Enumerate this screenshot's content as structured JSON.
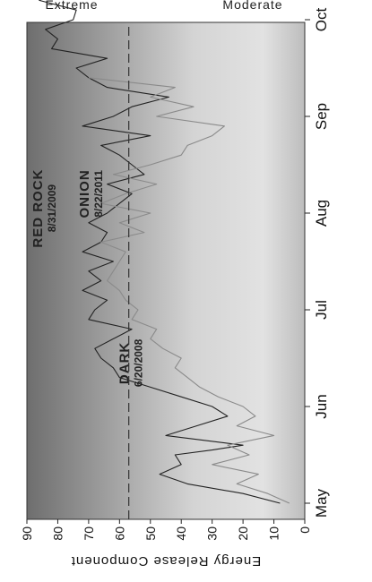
{
  "chart_data": {
    "type": "line",
    "ylabel": "Energy Release Component",
    "ylim": [
      0,
      90
    ],
    "yticks": [
      0,
      10,
      20,
      30,
      40,
      50,
      60,
      70,
      80,
      90
    ],
    "x_categories": [
      "May",
      "Jun",
      "Jul",
      "Aug",
      "Sep",
      "Oct"
    ],
    "bands": {
      "top": "Extreme",
      "bottom": "Moderate"
    },
    "reference_line": 57,
    "annotations": [
      {
        "text": "DARK",
        "sub": "6/20/2008",
        "x": 1.45,
        "y": 57
      },
      {
        "text": "RED ROCK",
        "sub": "8/31/2009",
        "x": 3.05,
        "y": 85
      },
      {
        "text": "ONION",
        "sub": "8/22/2011",
        "x": 3.2,
        "y": 70
      }
    ],
    "series": [
      {
        "color": "#222222",
        "x": [
          0,
          0.1,
          0.2,
          0.3,
          0.4,
          0.5,
          0.55,
          0.6,
          0.7,
          0.8,
          0.9,
          1,
          1.1,
          1.2,
          1.3,
          1.4,
          1.5,
          1.6,
          1.7,
          1.8,
          1.9,
          2,
          2.1,
          2.2,
          2.3,
          2.4,
          2.5,
          2.6,
          2.7,
          2.8,
          2.9,
          3,
          3.1,
          3.2,
          3.3,
          3.4,
          3.5,
          3.6,
          3.7,
          3.8,
          3.9,
          4,
          4.1,
          4.2,
          4.3,
          4.4,
          4.5,
          4.6,
          4.7,
          4.8,
          4.9,
          5,
          5.1,
          5.2,
          5.3,
          5.4,
          5.5
        ],
        "y": [
          8,
          20,
          38,
          47,
          40,
          42,
          30,
          20,
          45,
          35,
          25,
          30,
          40,
          50,
          60,
          62,
          66,
          68,
          62,
          56,
          70,
          68,
          64,
          72,
          66,
          70,
          62,
          72,
          66,
          64,
          70,
          64,
          60,
          56,
          64,
          52,
          56,
          60,
          66,
          50,
          72,
          62,
          56,
          44,
          64,
          70,
          74,
          64,
          82,
          80,
          84,
          75,
          74,
          86,
          80,
          85,
          82
        ]
      },
      {
        "color": "#8a8a8a",
        "x": [
          0,
          0.1,
          0.2,
          0.3,
          0.4,
          0.5,
          0.6,
          0.7,
          0.8,
          0.9,
          1,
          1.1,
          1.2,
          1.3,
          1.4,
          1.5,
          1.6,
          1.7,
          1.8,
          1.9,
          2,
          2.1,
          2.2,
          2.3,
          2.4,
          2.5,
          2.6,
          2.7,
          2.8,
          2.9,
          3,
          3.1,
          3.2,
          3.3,
          3.4,
          3.5,
          3.6,
          3.7,
          3.8,
          3.9,
          4,
          4.1,
          4.2,
          4.3,
          4.4
        ],
        "y": [
          5,
          12,
          22,
          15,
          30,
          18,
          25,
          10,
          22,
          16,
          20,
          28,
          34,
          38,
          42,
          40,
          46,
          50,
          48,
          56,
          54,
          58,
          60,
          64,
          62,
          60,
          58,
          66,
          52,
          60,
          50,
          66,
          58,
          48,
          62,
          50,
          40,
          38,
          30,
          26,
          48,
          36,
          50,
          42,
          70
        ]
      }
    ]
  }
}
